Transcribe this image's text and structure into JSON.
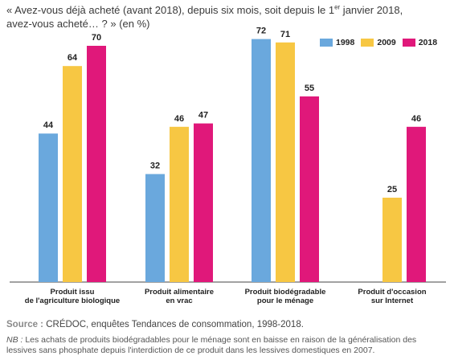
{
  "title": {
    "part1": "« Avez-vous déjà acheté (avant 2018), depuis six mois, soit depuis le 1",
    "sup": "er",
    "part2": " janvier 2018,",
    "line2": "avez-vous acheté… ? » (en %)"
  },
  "colors": {
    "1998": "#6aa8dd",
    "2009": "#f7c743",
    "2018": "#e0187a"
  },
  "chart_data": {
    "type": "bar",
    "title": "« Avez-vous déjà acheté (avant 2018), depuis six mois, soit depuis le 1er janvier 2018, avez-vous acheté… ? » (en %)",
    "categories": [
      [
        "Produit issu",
        "de l'agriculture biologique"
      ],
      [
        "Produit alimentaire",
        "en vrac"
      ],
      [
        "Produit biodégradable",
        "pour le ménage"
      ],
      [
        "Produit d'occasion",
        "sur Internet"
      ]
    ],
    "series": [
      {
        "name": "1998",
        "values": [
          44,
          32,
          72,
          null
        ]
      },
      {
        "name": "2009",
        "values": [
          64,
          46,
          71,
          25
        ]
      },
      {
        "name": "2018",
        "values": [
          70,
          47,
          55,
          46
        ]
      }
    ],
    "ylim": [
      0,
      80
    ],
    "grid": false,
    "legend": "top-right"
  },
  "source": {
    "label": "Source :",
    "text": " CRÉDOC, enquêtes Tendances de consommation, 1998-2018."
  },
  "note": {
    "label": "NB :",
    "text": " Les achats de produits biodégradables pour le ménage sont en baisse en raison de la généralisation des lessives sans phosphate depuis l'interdiction de ce produit dans les lessives domestiques en 2007."
  }
}
